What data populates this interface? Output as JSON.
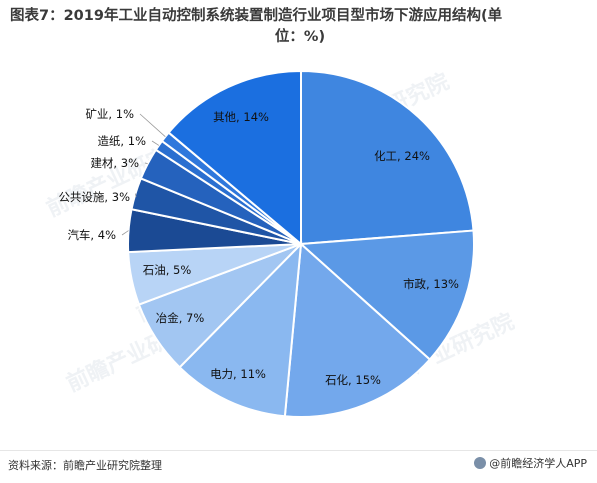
{
  "page": {
    "title_line1": "图表7：2019年工业自动控制系统装置制造行业项目型市场下游应用结构(单",
    "title_line2": "位：%)",
    "source": "资料来源：前瞻产业研究院整理",
    "app_name": "@前瞻经济学人APP",
    "watermark": "前瞻产业研究院"
  },
  "chart_data": {
    "type": "pie",
    "title": "2019年工业自动控制系统装置制造行业项目型市场下游应用结构(单位：%)",
    "unit": "%",
    "slices": [
      {
        "label": "化工",
        "value": 24,
        "color": "#3f86e0",
        "display": "化工, 24%"
      },
      {
        "label": "市政",
        "value": 13,
        "color": "#5b99e6",
        "display": "市政, 13%"
      },
      {
        "label": "石化",
        "value": 15,
        "color": "#73a8ec",
        "display": "石化, 15%"
      },
      {
        "label": "电力",
        "value": 11,
        "color": "#8ab8f0",
        "display": "电力, 11%"
      },
      {
        "label": "冶金",
        "value": 7,
        "color": "#a2c6f2",
        "display": "冶金, 7%"
      },
      {
        "label": "石油",
        "value": 5,
        "color": "#b8d4f6",
        "display": "石油, 5%"
      },
      {
        "label": "汽车",
        "value": 4,
        "color": "#1b4a94",
        "display": "汽车, 4%"
      },
      {
        "label": "公共设施",
        "value": 3,
        "color": "#1f55a6",
        "display": "公共设施, 3%"
      },
      {
        "label": "建材",
        "value": 3,
        "color": "#2562bd",
        "display": "建材, 3%"
      },
      {
        "label": "造纸",
        "value": 1,
        "color": "#2a6fd0",
        "display": "造纸, 1%"
      },
      {
        "label": "矿业",
        "value": 1,
        "color": "#2f78dc",
        "display": "矿业, 1%"
      },
      {
        "label": "其他",
        "value": 14,
        "color": "#1b6fe0",
        "display": "其他, 14%"
      }
    ]
  }
}
